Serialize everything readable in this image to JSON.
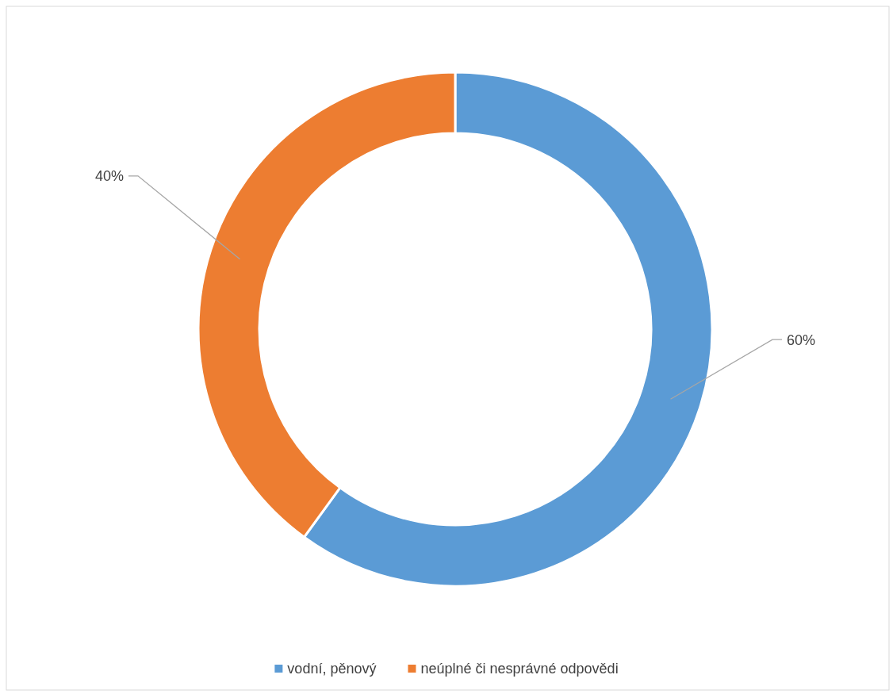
{
  "chart_data": {
    "type": "donut",
    "categories": [
      "vodní, pěnový",
      "neúplné či nesprávné odpovědi"
    ],
    "values": [
      60,
      40
    ],
    "colors": [
      "#5b9bd5",
      "#ed7d31"
    ],
    "value_labels": [
      "60%",
      "40%"
    ],
    "legend": "bottom"
  }
}
